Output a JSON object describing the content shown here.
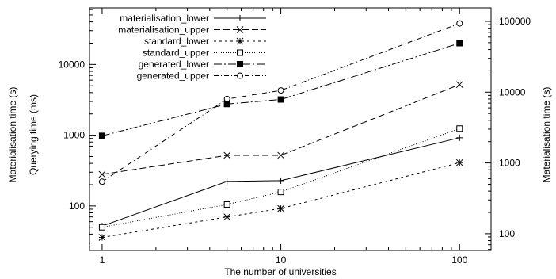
{
  "chart_data": {
    "type": "line",
    "xlabel": "The number of universities",
    "ylabel_left_outer": "Materialisation time (s)",
    "ylabel_left_inner": "Querying time (ms)",
    "ylabel_right": "Materialisation time (s)",
    "x_scale": "log",
    "y_left_scale": "log",
    "y_right_scale": "log",
    "xlim": [
      0.85,
      150
    ],
    "ylim_left": [
      23.5,
      63000
    ],
    "ylim_right": [
      58,
      155000
    ],
    "x_ticks": [
      1,
      10,
      100
    ],
    "x_tick_labels": [
      "1",
      "10",
      "100"
    ],
    "y_left_ticks": [
      100,
      1000,
      10000
    ],
    "y_left_tick_labels": [
      "100",
      "1000",
      "10000"
    ],
    "y_right_ticks": [
      100,
      1000,
      10000,
      100000
    ],
    "y_right_tick_labels": [
      "100",
      "1000",
      "10000",
      "100000"
    ],
    "legend_position": "top-left",
    "grid": false,
    "x": [
      1,
      5,
      10,
      100
    ],
    "series": [
      {
        "name": "materialisation_lower",
        "values": [
          52,
          222,
          228,
          920
        ],
        "marker": "plus",
        "dash": "none"
      },
      {
        "name": "materialisation_upper",
        "values": [
          280,
          520,
          520,
          5200
        ],
        "marker": "cross",
        "dash": "8,4"
      },
      {
        "name": "standard_lower",
        "values": [
          36,
          70,
          92,
          410
        ],
        "marker": "star",
        "dash": "3,4"
      },
      {
        "name": "standard_upper",
        "values": [
          50,
          105,
          158,
          1240
        ],
        "marker": "square-open",
        "dash": "1,2"
      },
      {
        "name": "generated_lower",
        "values": [
          980,
          2760,
          3200,
          20000
        ],
        "marker": "square-filled",
        "dash": "10,3,2,3"
      },
      {
        "name": "generated_upper",
        "values": [
          220,
          3250,
          4300,
          38000
        ],
        "marker": "circle-open",
        "dash": "6,3,1,3"
      }
    ]
  }
}
